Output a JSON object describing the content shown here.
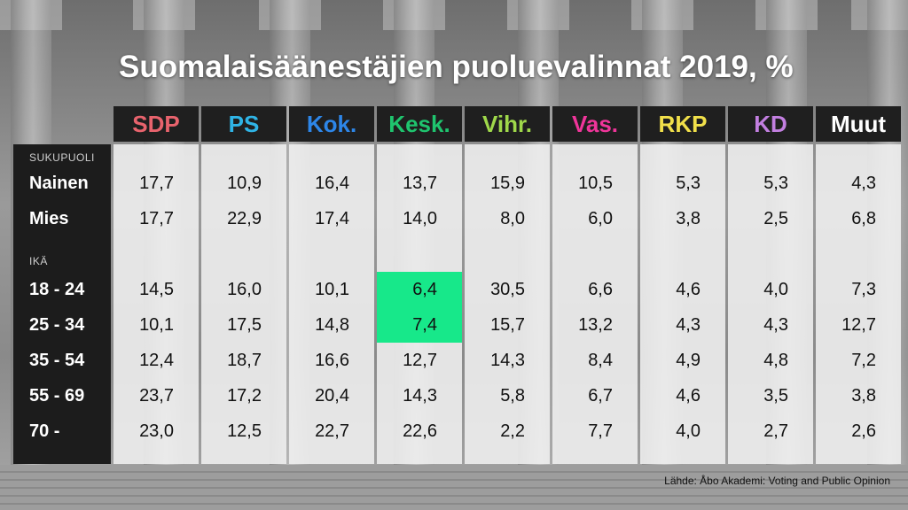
{
  "title": "Suomalaisäänestäjien puoluevalinnat 2019, %",
  "source": "Lähde: Åbo Akademi: Voting and Public Opinion",
  "parties": [
    {
      "label": "SDP",
      "color": "#e8636d"
    },
    {
      "label": "PS",
      "color": "#2fb4e6"
    },
    {
      "label": "Kok.",
      "color": "#2d86e8"
    },
    {
      "label": "Kesk.",
      "color": "#1fc46e"
    },
    {
      "label": "Vihr.",
      "color": "#9fd84a"
    },
    {
      "label": "Vas.",
      "color": "#f0359a"
    },
    {
      "label": "RKP",
      "color": "#f1e04a"
    },
    {
      "label": "KD",
      "color": "#c27fe0"
    },
    {
      "label": "Muut",
      "color": "#ffffff"
    }
  ],
  "sections": {
    "gender": "SUKUPUOLI",
    "age": "IKÄ"
  },
  "highlight_color": "#17e88a",
  "chart_data": {
    "type": "table",
    "title": "Suomalaisäänestäjien puoluevalinnat 2019, %",
    "columns": [
      "SDP",
      "PS",
      "Kok.",
      "Kesk.",
      "Vihr.",
      "Vas.",
      "RKP",
      "KD",
      "Muut"
    ],
    "rows": [
      {
        "group": "SUKUPUOLI",
        "label": "Nainen",
        "values": [
          "17,7",
          "10,9",
          "16,4",
          "13,7",
          "15,9",
          "10,5",
          "5,3",
          "5,3",
          "4,3"
        ]
      },
      {
        "group": "SUKUPUOLI",
        "label": "Mies",
        "values": [
          "17,7",
          "22,9",
          "17,4",
          "14,0",
          "8,0",
          "6,0",
          "3,8",
          "2,5",
          "6,8"
        ]
      },
      {
        "group": "IKÄ",
        "label": "18 - 24",
        "values": [
          "14,5",
          "16,0",
          "10,1",
          "6,4",
          "30,5",
          "6,6",
          "4,6",
          "4,0",
          "7,3"
        ]
      },
      {
        "group": "IKÄ",
        "label": "25 - 34",
        "values": [
          "10,1",
          "17,5",
          "14,8",
          "7,4",
          "15,7",
          "13,2",
          "4,3",
          "4,3",
          "12,7"
        ]
      },
      {
        "group": "IKÄ",
        "label": "35 - 54",
        "values": [
          "12,4",
          "18,7",
          "16,6",
          "12,7",
          "14,3",
          "8,4",
          "4,9",
          "4,8",
          "7,2"
        ]
      },
      {
        "group": "IKÄ",
        "label": "55 - 69",
        "values": [
          "23,7",
          "17,2",
          "20,4",
          "14,3",
          "5,8",
          "6,7",
          "4,6",
          "3,5",
          "3,8"
        ]
      },
      {
        "group": "IKÄ",
        "label": "70 -",
        "values": [
          "23,0",
          "12,5",
          "22,7",
          "22,6",
          "2,2",
          "7,7",
          "4,0",
          "2,7",
          "2,6"
        ]
      }
    ],
    "highlighted_cells": [
      {
        "row": "18 - 24",
        "column": "Kesk."
      },
      {
        "row": "25 - 34",
        "column": "Kesk."
      }
    ]
  }
}
